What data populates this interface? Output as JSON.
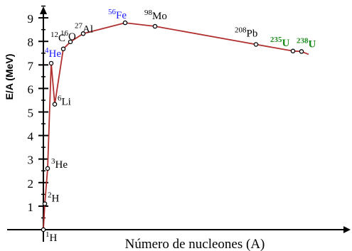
{
  "chart_data": {
    "type": "line",
    "title": "",
    "xlabel": "Número de nucleones (A)",
    "ylabel": "E/A  (MeV)",
    "ylim": [
      0,
      9.5
    ],
    "yticks": [
      "1",
      "2",
      "3",
      "4",
      "5",
      "6",
      "7",
      "8",
      "9"
    ],
    "colors": {
      "curve": "#b03030",
      "axis": "#000000",
      "highlight_blue": "#1a1aff",
      "highlight_green": "#1a8a1a"
    },
    "series": [
      {
        "values": [
          {
            "x": 1,
            "y": 0
          },
          {
            "x": 2,
            "y": 1.1
          },
          {
            "x": 3,
            "y": 2.6
          },
          {
            "x": 4,
            "y": 7.07
          },
          {
            "x": 6,
            "y": 5.33
          },
          {
            "x": 9,
            "y": 6.5
          },
          {
            "x": 12,
            "y": 7.68
          },
          {
            "x": 16,
            "y": 7.98
          },
          {
            "x": 27,
            "y": 8.33
          },
          {
            "x": 56,
            "y": 8.79
          },
          {
            "x": 98,
            "y": 8.64
          },
          {
            "x": 208,
            "y": 7.87
          },
          {
            "x": 235,
            "y": 7.59
          },
          {
            "x": 238,
            "y": 7.57
          },
          {
            "x": 255,
            "y": 7.45
          }
        ]
      }
    ],
    "points": [
      {
        "x": 1,
        "y": 0,
        "sup": "1",
        "sym": "H",
        "color": "#000000"
      },
      {
        "x": 2,
        "y": 1.1,
        "sup": "2",
        "sym": "H",
        "color": "#000000"
      },
      {
        "x": 3,
        "y": 2.6,
        "sup": "3",
        "sym": "He",
        "color": "#000000"
      },
      {
        "x": 4,
        "y": 7.07,
        "sup": "4",
        "sym": "He",
        "color": "#1a1aff"
      },
      {
        "x": 6,
        "y": 5.33,
        "sup": "6",
        "sym": "Li",
        "color": "#000000"
      },
      {
        "x": 12,
        "y": 7.68,
        "sup": "12",
        "sym": "C",
        "color": "#000000"
      },
      {
        "x": 16,
        "y": 7.98,
        "sup": "16",
        "sym": "O",
        "color": "#000000"
      },
      {
        "x": 27,
        "y": 8.33,
        "sup": "27",
        "sym": "Al",
        "color": "#000000"
      },
      {
        "x": 56,
        "y": 8.79,
        "sup": "56",
        "sym": "Fe",
        "color": "#1a1aff"
      },
      {
        "x": 98,
        "y": 8.64,
        "sup": "98",
        "sym": "Mo",
        "color": "#000000"
      },
      {
        "x": 208,
        "y": 7.87,
        "sup": "208",
        "sym": "Pb",
        "color": "#000000"
      },
      {
        "x": 235,
        "y": 7.59,
        "sup": "235",
        "sym": "U",
        "color": "#1a8a1a"
      },
      {
        "x": 238,
        "y": 7.57,
        "sup": "238",
        "sym": "U",
        "color": "#1a8a1a"
      }
    ]
  }
}
